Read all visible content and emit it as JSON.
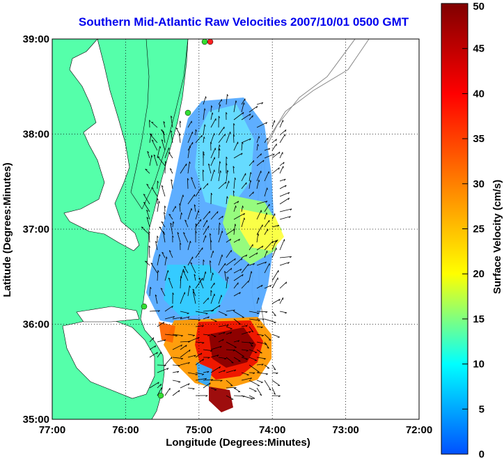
{
  "title": "Southern Mid-Atlantic Raw Velocities 2007/10/01 0500 GMT",
  "xlabel": "Longitude (Degrees:Minutes)",
  "ylabel": "Latitude (Degrees:Minutes)",
  "colorbar": {
    "label": "Surface Velocity (cm/s)",
    "ticks": [
      "0",
      "5",
      "10",
      "15",
      "20",
      "25",
      "30",
      "35",
      "40",
      "45",
      "50"
    ],
    "range": [
      0,
      50
    ],
    "colors": [
      "#0050ff",
      "#00ffff",
      "#ffff00",
      "#ff8000",
      "#ff0000",
      "#800000"
    ]
  },
  "map": {
    "lon_ticks": [
      "77:00",
      "76:00",
      "75:00",
      "74:00",
      "73:00",
      "72:00"
    ],
    "lat_ticks": [
      "39:00",
      "38:00",
      "37:00",
      "36:00",
      "35:00"
    ],
    "lon_range": [
      -77,
      -72
    ],
    "lat_range": [
      35,
      39
    ],
    "land_color": "#55ffaa",
    "water_color": "#ffffff",
    "grid": "dotted"
  }
}
